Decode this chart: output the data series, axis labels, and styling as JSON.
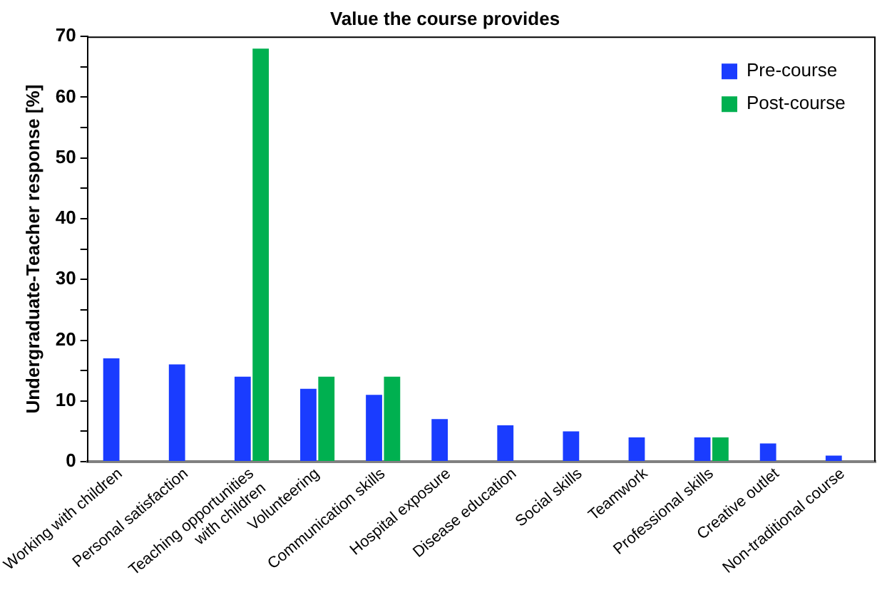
{
  "chart_data": {
    "type": "bar",
    "title": "Value the course provides",
    "ylabel": "Undergraduate-Teacher response [%]",
    "categories": [
      "Working with children",
      "Personal satisfaction",
      "Teaching opportunities\nwith children",
      "Volunteering",
      "Communication skills",
      "Hospital exposure",
      "Disease education",
      "Social skills",
      "Teamwork",
      "Professional skills",
      "Creative outlet",
      "Non-traditional course"
    ],
    "series": [
      {
        "name": "Pre-course",
        "color": "#1a3cff",
        "values": [
          17,
          16,
          14,
          12,
          11,
          7,
          6,
          5,
          4,
          4,
          3,
          1
        ]
      },
      {
        "name": "Post-course",
        "color": "#00b050",
        "values": [
          null,
          null,
          68,
          14,
          14,
          null,
          null,
          null,
          null,
          4,
          null,
          null
        ]
      }
    ],
    "ylim": [
      0,
      70
    ],
    "yticks": [
      0,
      {
        "value": 5,
        "label": null
      },
      10,
      {
        "value": 15,
        "label": null
      },
      20,
      {
        "value": 25,
        "label": null
      },
      30,
      {
        "value": 35,
        "label": null
      },
      40,
      {
        "value": 45,
        "label": null
      },
      50,
      {
        "value": 55,
        "label": null
      },
      60,
      {
        "value": 65,
        "label": null
      },
      70
    ],
    "grid": false,
    "legend": "top right"
  }
}
